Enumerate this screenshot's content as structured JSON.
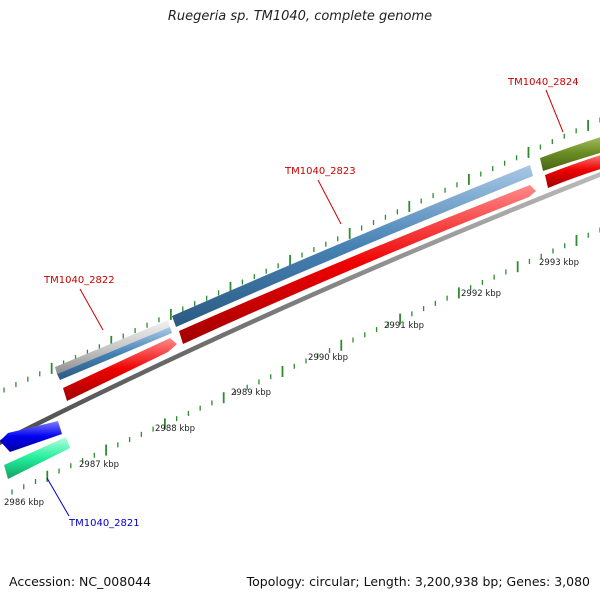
{
  "title": "Ruegeria sp. TM1040, complete genome",
  "accession": "Accession: NC_008044",
  "summary": "Topology: circular; Length: 3,200,938 bp; Genes: 3,080",
  "colors": {
    "backbone": "#808080",
    "tick": "#2e8b2e",
    "gene_label_red": "#cc0000",
    "gene_label_blue": "#0000cc"
  },
  "scale_labels": [
    "2986 kbp",
    "2987 kbp",
    "2988 kbp",
    "2989 kbp",
    "2990 kbp",
    "2991 kbp",
    "2992 kbp",
    "2993 kbp"
  ],
  "gene_labels": [
    {
      "text": "TM1040_2821",
      "color": "#0000cc"
    },
    {
      "text": "TM1040_2822",
      "color": "#cc0000"
    },
    {
      "text": "TM1040_2823",
      "color": "#cc0000"
    },
    {
      "text": "TM1040_2824",
      "color": "#cc0000"
    }
  ]
}
